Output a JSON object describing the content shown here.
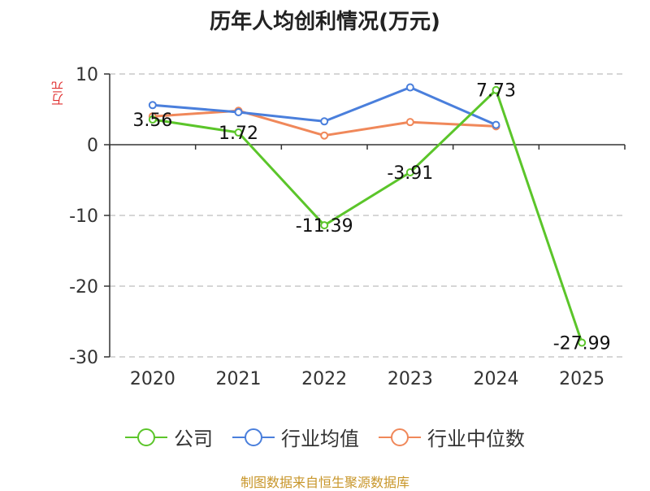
{
  "chart_data": {
    "type": "line",
    "title": "历年人均创利情况(万元)",
    "ylabel": "万元",
    "categories": [
      "2020",
      "2021",
      "2022",
      "2023",
      "2024",
      "2025"
    ],
    "ylim": [
      -30,
      10
    ],
    "yticks": [
      10,
      0,
      -10,
      -20,
      -30
    ],
    "grid": true,
    "legend_position": "bottom",
    "series": [
      {
        "name": "公司",
        "color": "#5bc52a",
        "values": [
          3.56,
          1.72,
          -11.39,
          -3.91,
          7.73,
          -27.99
        ],
        "labels": [
          "3.56",
          "1.72",
          "-11.39",
          "-3.91",
          "7.73",
          "-27.99"
        ]
      },
      {
        "name": "行业均值",
        "color": "#4a7fdc",
        "values": [
          5.6,
          4.6,
          3.3,
          8.1,
          2.8,
          null
        ]
      },
      {
        "name": "行业中位数",
        "color": "#f0885a",
        "values": [
          4.0,
          4.8,
          1.3,
          3.2,
          2.6,
          null
        ]
      }
    ]
  },
  "source": "制图数据来自恒生聚源数据库"
}
